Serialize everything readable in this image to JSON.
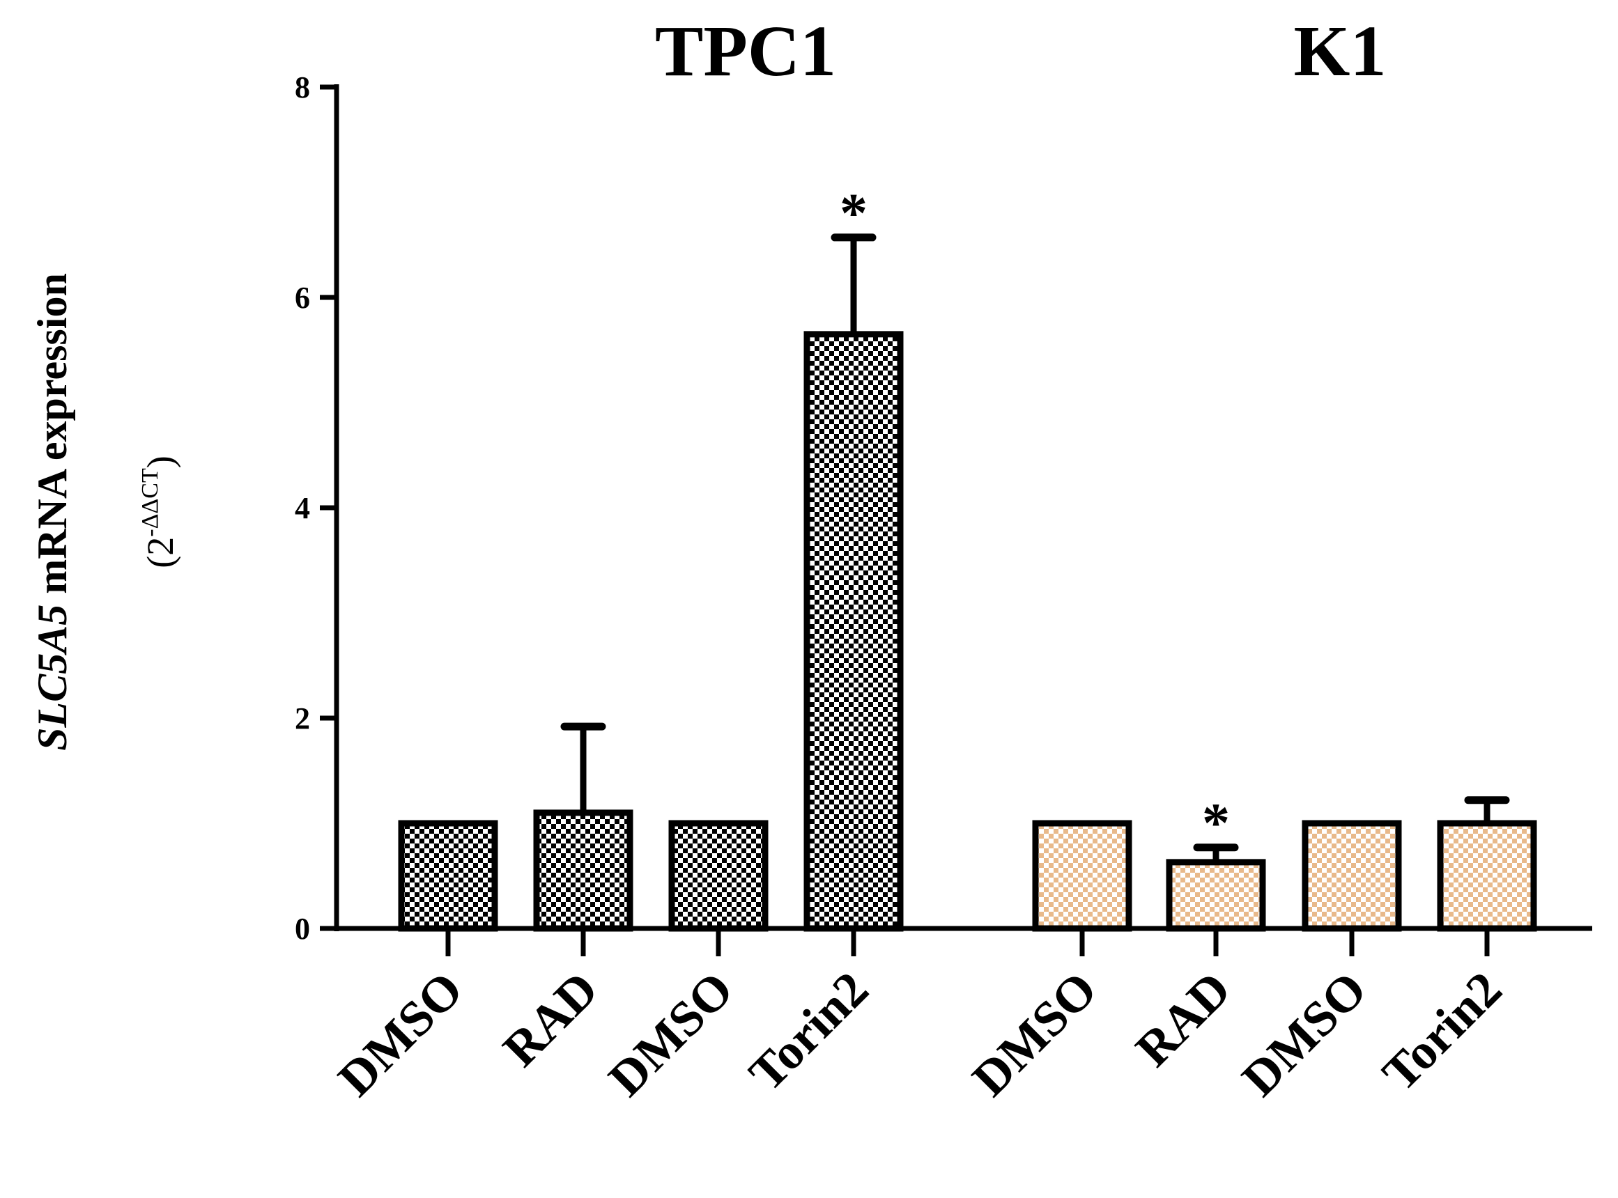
{
  "chart_data": {
    "type": "bar",
    "ylabel": {
      "gene": "SLC5A5",
      "rest": " mRNA expression",
      "unit_open": "(2",
      "unit_sup": "-ΔΔCT",
      "unit_close": ")"
    },
    "ylim": [
      0,
      8
    ],
    "yticks": [
      {
        "value": 0,
        "label": "0"
      },
      {
        "value": 2,
        "label": "2"
      },
      {
        "value": 4,
        "label": "4"
      },
      {
        "value": 6,
        "label": "6"
      },
      {
        "value": 8,
        "label": "8"
      }
    ],
    "groups": [
      {
        "name": "TPC1",
        "color": "#000000",
        "bars": [
          {
            "label": "DMSO",
            "value": 1.0,
            "error": 0,
            "significant": false
          },
          {
            "label": "RAD",
            "value": 1.1,
            "error": 0.82,
            "significant": false
          },
          {
            "label": "DMSO",
            "value": 1.0,
            "error": 0,
            "significant": false
          },
          {
            "label": "Torin2",
            "value": 5.65,
            "error": 0.92,
            "significant": true
          }
        ]
      },
      {
        "name": "K1",
        "color": "#e8b98a",
        "bars": [
          {
            "label": "DMSO",
            "value": 1.0,
            "error": 0,
            "significant": false
          },
          {
            "label": "RAD",
            "value": 0.63,
            "error": 0.14,
            "significant": true
          },
          {
            "label": "DMSO",
            "value": 1.0,
            "error": 0,
            "significant": false
          },
          {
            "label": "Torin2",
            "value": 1.0,
            "error": 0.22,
            "significant": false
          }
        ]
      }
    ],
    "significance_marker": "*"
  }
}
